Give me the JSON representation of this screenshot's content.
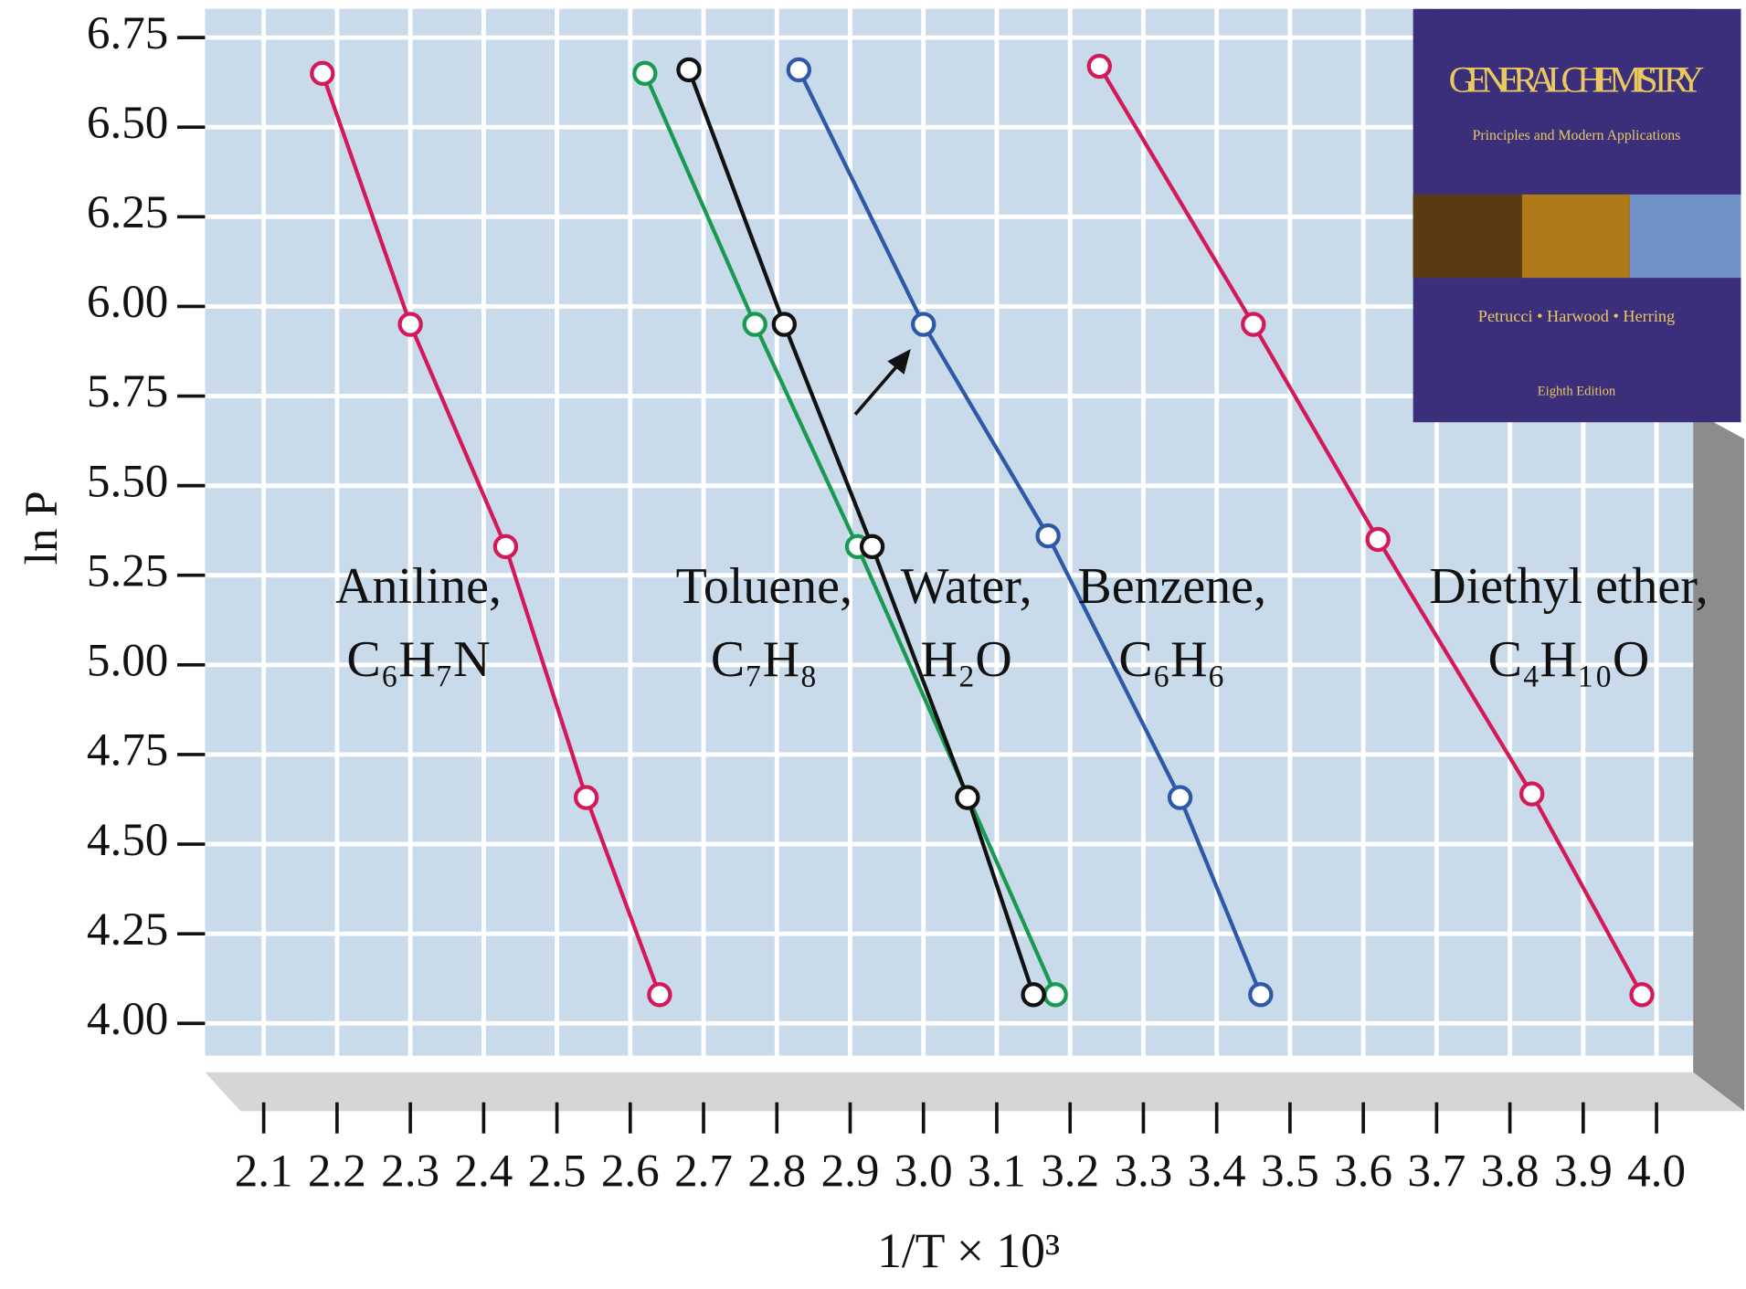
{
  "chart_data": {
    "type": "line",
    "xlabel": "1/T × 10³",
    "ylabel": "ln P",
    "xlim": [
      2.02,
      4.05
    ],
    "ylim": [
      3.91,
      6.83
    ],
    "xticks": [
      2.1,
      2.2,
      2.3,
      2.4,
      2.5,
      2.6,
      2.7,
      2.8,
      2.9,
      {
        "value": 3,
        "label": "3.0"
      },
      3.1,
      3.2,
      3.3,
      3.4,
      3.5,
      3.6,
      3.7,
      3.8,
      3.9,
      {
        "value": 4,
        "label": "4.0"
      }
    ],
    "yticks": [
      {
        "value": 4,
        "label": "4.00"
      },
      4.25,
      {
        "value": 4.5,
        "label": "4.50"
      },
      4.75,
      {
        "value": 5,
        "label": "5.00"
      },
      5.25,
      {
        "value": 5.5,
        "label": "5.50"
      },
      5.75,
      {
        "value": 6,
        "label": "6.00"
      },
      6.25,
      {
        "value": 6.5,
        "label": "6.50"
      },
      6.75
    ],
    "grid": true,
    "series": [
      {
        "name": "Aniline,",
        "formula": "C₆H₇N",
        "color": "#d3195a",
        "x": [
          2.18,
          2.3,
          2.43,
          2.54,
          2.64
        ],
        "values": [
          6.65,
          5.95,
          5.33,
          4.63,
          4.08
        ]
      },
      {
        "name": "Toluene,",
        "formula": "C₇H₈",
        "color": "#1a9a50",
        "x": [
          2.62,
          2.77,
          2.91,
          3.18
        ],
        "values": [
          6.65,
          5.95,
          5.33,
          4.08
        ]
      },
      {
        "name": "Water,",
        "formula": "H₂O",
        "color": "#111111",
        "x": [
          2.68,
          2.81,
          2.93,
          3.06,
          3.15
        ],
        "values": [
          6.66,
          5.95,
          5.33,
          4.63,
          4.08
        ]
      },
      {
        "name": "Benzene,",
        "formula": "C₆H₆",
        "color": "#2e58a8",
        "x": [
          2.83,
          3.0,
          3.17,
          3.35,
          3.46
        ],
        "values": [
          6.66,
          5.95,
          5.36,
          4.63,
          4.08
        ]
      },
      {
        "name": "Diethyl ether,",
        "formula": "C₄H₁₀O",
        "color": "#d3195a",
        "x": [
          3.24,
          3.45,
          3.62,
          3.83,
          3.98
        ],
        "values": [
          6.67,
          5.95,
          5.35,
          4.64,
          4.08
        ]
      }
    ]
  },
  "book_cover": {
    "title": "GENERAL CHEMISTRY",
    "subtitle": "Principles and Modern Applications",
    "authors": "Petrucci • Harwood • Herring",
    "edition": "Eighth Edition"
  }
}
